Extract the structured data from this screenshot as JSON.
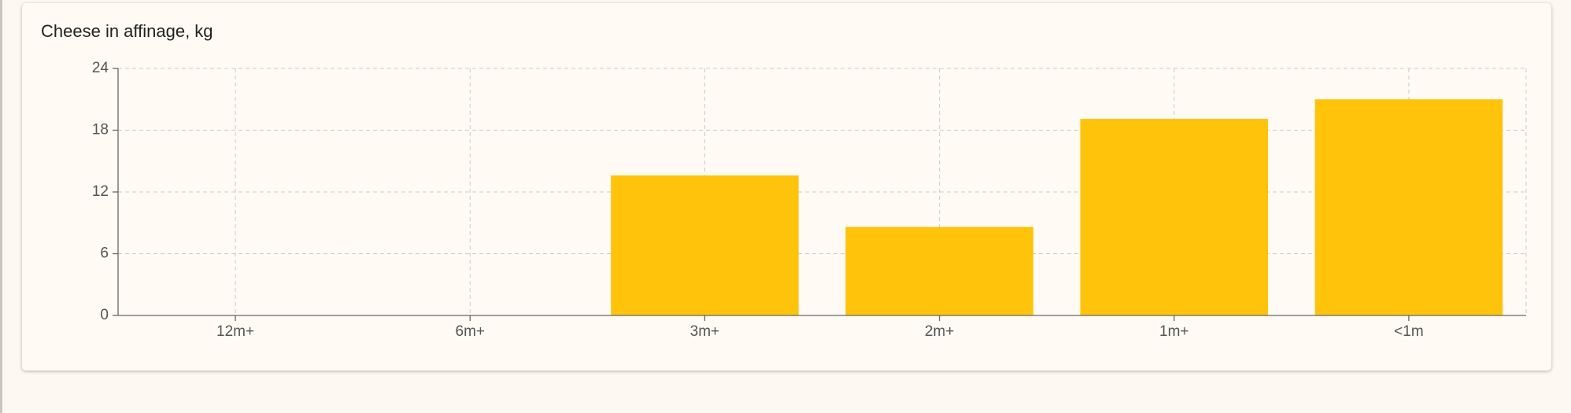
{
  "chart_data": {
    "type": "bar",
    "title": "Cheese in affinage, kg",
    "categories": [
      "12m+",
      "6m+",
      "3m+",
      "2m+",
      "1m+",
      "<1m"
    ],
    "values": [
      0,
      0,
      13.6,
      8.6,
      19.1,
      21.0
    ],
    "color": "#ffc30b",
    "ylim": [
      0,
      24
    ],
    "yticks": [
      0,
      6,
      12,
      18,
      24
    ],
    "grid": true
  }
}
